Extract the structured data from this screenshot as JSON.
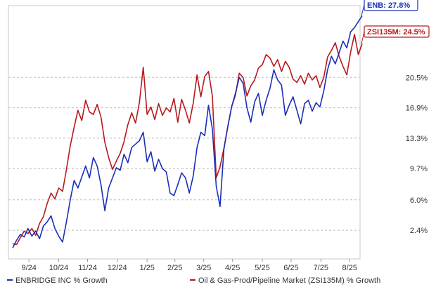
{
  "chart_data": {
    "type": "line",
    "x_ticks": [
      "9/24",
      "10/24",
      "11/24",
      "12/24",
      "1/25",
      "2/25",
      "3/25",
      "4/25",
      "5/25",
      "6/25",
      "7/25",
      "8/25"
    ],
    "y_ticks": [
      "2.4%",
      "6.0%",
      "9.7%",
      "13.3%",
      "16.9%",
      "20.5%"
    ],
    "y_tick_values": [
      2.4,
      6.0,
      9.7,
      13.3,
      16.9,
      20.5
    ],
    "ylim": [
      -1.0,
      29.0
    ],
    "grid": "horizontal-dashed",
    "legend_position": "bottom",
    "series": [
      {
        "name": "ENBRIDGE INC % Growth",
        "color": "#1a2fb8",
        "callout": "ENB: 27.8%",
        "x": [
          "2024-08-29",
          "2024-09-02",
          "2024-09-06",
          "2024-09-10",
          "2024-09-14",
          "2024-09-18",
          "2024-09-22",
          "2024-09-26",
          "2024-09-30",
          "2024-10-04",
          "2024-10-08",
          "2024-10-12",
          "2024-10-16",
          "2024-10-20",
          "2024-10-24",
          "2024-10-28",
          "2024-11-01",
          "2024-11-05",
          "2024-11-09",
          "2024-11-13",
          "2024-11-17",
          "2024-11-21",
          "2024-11-25",
          "2024-11-29",
          "2024-12-03",
          "2024-12-07",
          "2024-12-11",
          "2024-12-15",
          "2024-12-19",
          "2024-12-23",
          "2024-12-27",
          "2024-12-31",
          "2025-01-04",
          "2025-01-08",
          "2025-01-12",
          "2025-01-16",
          "2025-01-20",
          "2025-01-24",
          "2025-01-28",
          "2025-02-01",
          "2025-02-05",
          "2025-02-09",
          "2025-02-13",
          "2025-02-17",
          "2025-02-21",
          "2025-02-25",
          "2025-03-01",
          "2025-03-05",
          "2025-03-09",
          "2025-03-13",
          "2025-03-17",
          "2025-03-21",
          "2025-03-25",
          "2025-03-29",
          "2025-04-02",
          "2025-04-06",
          "2025-04-10",
          "2025-04-14",
          "2025-04-18",
          "2025-04-22",
          "2025-04-26",
          "2025-04-30",
          "2025-05-04",
          "2025-05-08",
          "2025-05-12",
          "2025-05-16",
          "2025-05-20",
          "2025-05-24",
          "2025-05-28",
          "2025-06-01",
          "2025-06-05",
          "2025-06-09",
          "2025-06-13",
          "2025-06-17",
          "2025-06-21",
          "2025-06-25",
          "2025-06-29",
          "2025-07-03",
          "2025-07-07",
          "2025-07-11",
          "2025-07-15",
          "2025-07-19",
          "2025-07-23",
          "2025-07-27",
          "2025-07-31",
          "2025-08-04",
          "2025-08-08",
          "2025-08-12",
          "2025-08-16",
          "2025-08-20",
          "2025-08-24",
          "2025-08-28"
        ],
        "values": [
          0.3,
          1.2,
          1.9,
          1.6,
          2.6,
          1.7,
          2.3,
          1.4,
          2.9,
          3.4,
          4.1,
          2.6,
          1.7,
          1.0,
          3.4,
          6.0,
          8.3,
          7.4,
          8.7,
          10.0,
          8.6,
          11.0,
          10.0,
          7.8,
          4.7,
          7.4,
          8.6,
          9.8,
          9.5,
          11.4,
          10.4,
          12.2,
          12.6,
          13.0,
          14.0,
          10.5,
          11.7,
          9.4,
          10.8,
          9.7,
          9.3,
          6.8,
          6.5,
          7.8,
          9.2,
          8.6,
          6.8,
          8.8,
          12.2,
          14.0,
          13.6,
          17.2,
          14.4,
          7.6,
          5.2,
          12.0,
          14.6,
          17.0,
          18.6,
          20.5,
          19.8,
          16.9,
          15.2,
          17.6,
          18.6,
          16.0,
          17.8,
          19.2,
          21.4,
          20.2,
          19.6,
          16.0,
          17.2,
          18.2,
          16.6,
          15.0,
          17.4,
          17.8,
          16.5,
          17.5,
          17.0,
          18.9,
          21.4,
          23.0,
          22.1,
          23.4,
          24.8,
          24.0,
          25.9,
          26.4,
          27.1,
          27.8
        ]
      },
      {
        "name": "Oil & Gas-Prod/Pipeline Market (ZSI135M) % Growth",
        "color": "#b8191e",
        "callout": "ZSI135M: 24.5%",
        "x": [
          "2024-08-29",
          "2024-09-02",
          "2024-09-06",
          "2024-09-10",
          "2024-09-14",
          "2024-09-18",
          "2024-09-22",
          "2024-09-26",
          "2024-09-30",
          "2024-10-04",
          "2024-10-08",
          "2024-10-12",
          "2024-10-16",
          "2024-10-20",
          "2024-10-24",
          "2024-10-28",
          "2024-11-01",
          "2024-11-05",
          "2024-11-09",
          "2024-11-13",
          "2024-11-17",
          "2024-11-21",
          "2024-11-25",
          "2024-11-29",
          "2024-12-03",
          "2024-12-07",
          "2024-12-11",
          "2024-12-15",
          "2024-12-19",
          "2024-12-23",
          "2024-12-27",
          "2024-12-31",
          "2025-01-04",
          "2025-01-08",
          "2025-01-12",
          "2025-01-16",
          "2025-01-20",
          "2025-01-24",
          "2025-01-28",
          "2025-02-01",
          "2025-02-05",
          "2025-02-09",
          "2025-02-13",
          "2025-02-17",
          "2025-02-21",
          "2025-02-25",
          "2025-03-01",
          "2025-03-05",
          "2025-03-09",
          "2025-03-13",
          "2025-03-17",
          "2025-03-21",
          "2025-03-25",
          "2025-03-29",
          "2025-04-02",
          "2025-04-06",
          "2025-04-10",
          "2025-04-14",
          "2025-04-18",
          "2025-04-22",
          "2025-04-26",
          "2025-04-30",
          "2025-05-04",
          "2025-05-08",
          "2025-05-12",
          "2025-05-16",
          "2025-05-20",
          "2025-05-24",
          "2025-05-28",
          "2025-06-01",
          "2025-06-05",
          "2025-06-09",
          "2025-06-13",
          "2025-06-17",
          "2025-06-21",
          "2025-06-25",
          "2025-06-29",
          "2025-07-03",
          "2025-07-07",
          "2025-07-11",
          "2025-07-15",
          "2025-07-19",
          "2025-07-23",
          "2025-07-27",
          "2025-07-31",
          "2025-08-04",
          "2025-08-08",
          "2025-08-12",
          "2025-08-16",
          "2025-08-20",
          "2025-08-24",
          "2025-08-28"
        ],
        "values": [
          0.8,
          0.7,
          1.5,
          2.3,
          2.0,
          2.6,
          1.8,
          3.2,
          4.0,
          5.6,
          6.8,
          6.1,
          7.4,
          7.0,
          9.6,
          12.4,
          14.6,
          16.6,
          15.4,
          17.8,
          16.4,
          16.1,
          17.3,
          15.8,
          12.8,
          11.0,
          9.6,
          10.6,
          11.5,
          12.9,
          14.9,
          16.3,
          15.1,
          17.5,
          21.7,
          16.1,
          17.0,
          15.5,
          17.4,
          16.0,
          16.9,
          16.4,
          18.0,
          15.2,
          17.9,
          16.6,
          15.1,
          17.4,
          20.8,
          18.2,
          20.6,
          21.2,
          18.3,
          8.6,
          9.9,
          12.1,
          14.6,
          17.0,
          18.4,
          21.0,
          20.5,
          18.3,
          19.5,
          20.2,
          21.6,
          22.0,
          23.2,
          22.8,
          21.8,
          22.6,
          21.2,
          22.4,
          21.7,
          20.3,
          19.9,
          20.7,
          19.7,
          21.0,
          20.2,
          20.7,
          19.3,
          20.5,
          22.9,
          23.7,
          24.6,
          23.0,
          21.8,
          20.8,
          23.5,
          25.6,
          23.2,
          24.5
        ]
      }
    ]
  }
}
